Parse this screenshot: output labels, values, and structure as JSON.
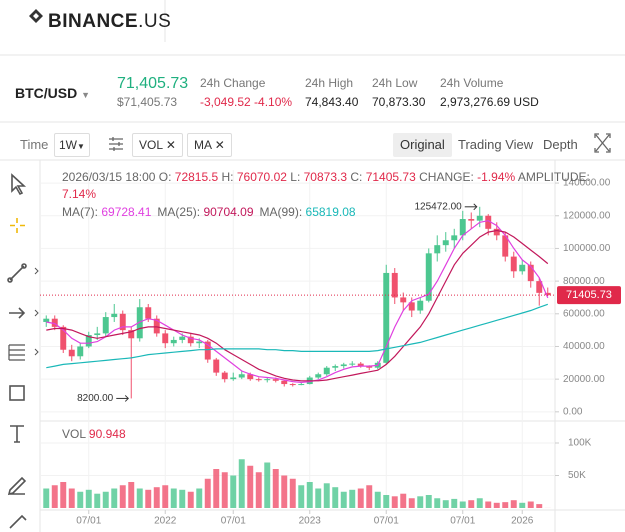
{
  "header": {
    "logo": "BINANCE",
    "logo_suffix": ".US"
  },
  "ticker": {
    "pair": "BTC/USD",
    "price": "71,405.73",
    "price_usd": "$71,405.73",
    "stats": [
      {
        "label": "24h Change",
        "value": "-3,049.52 -4.10%"
      },
      {
        "label": "24h High",
        "value": "74,843.40"
      },
      {
        "label": "24h Low",
        "value": "70,873.30"
      },
      {
        "label": "24h Volume",
        "value": "2,973,276.69 USD"
      }
    ]
  },
  "toolbar": {
    "time_label": "Time",
    "interval": "1W",
    "indicators": [
      "VOL",
      "MA"
    ],
    "views": [
      "Original",
      "Trading View",
      "Depth"
    ]
  },
  "chart": {
    "type": "candlestick",
    "date": "2026/03/15 18:00",
    "ohlc_labels": [
      "O:",
      "H:",
      "L:",
      "C:"
    ],
    "change_label": "CHANGE:",
    "change": "-1.94%",
    "amplitude_label": "AMPLITUDE:",
    "amplitude": "7.14%",
    "up_color": "#4cc790",
    "down_color": "#f0516d",
    "price_line_color": "#e0294a",
    "categories": [
      null,
      null,
      null,
      null,
      null,
      "07/01",
      null,
      null,
      null,
      null,
      null,
      null,
      null,
      null,
      "2022",
      null,
      null,
      null,
      null,
      null,
      null,
      null,
      "07/01",
      null,
      null,
      null,
      null,
      null,
      null,
      null,
      null,
      "2023",
      null,
      null,
      null,
      null,
      null,
      null,
      null,
      null,
      "07/01",
      null,
      null,
      null,
      null,
      null,
      null,
      null,
      null,
      "07/01",
      null,
      null,
      null,
      null,
      null,
      null,
      "2026",
      null,
      null,
      null
    ],
    "candles": [
      [
        55000,
        59000,
        52000,
        57000
      ],
      [
        57000,
        59000,
        50000,
        52000
      ],
      [
        52000,
        53000,
        36000,
        38000
      ],
      [
        38000,
        41000,
        31000,
        34000
      ],
      [
        34000,
        42000,
        32000,
        40000
      ],
      [
        40000,
        49000,
        39000,
        47000
      ],
      [
        47000,
        52000,
        44000,
        48000
      ],
      [
        48000,
        61000,
        46000,
        58000
      ],
      [
        58000,
        66000,
        55000,
        60000
      ],
      [
        60000,
        62000,
        47000,
        50000
      ],
      [
        50000,
        52000,
        8200,
        45000
      ],
      [
        45000,
        69000,
        43000,
        64000
      ],
      [
        64000,
        66000,
        55000,
        57000
      ],
      [
        57000,
        59000,
        46000,
        48000
      ],
      [
        48000,
        50000,
        39000,
        42000
      ],
      [
        42000,
        46000,
        40000,
        44000
      ],
      [
        44000,
        48000,
        42000,
        46000
      ],
      [
        46000,
        48000,
        40000,
        42000
      ],
      [
        42000,
        45000,
        39000,
        43000
      ],
      [
        43000,
        44000,
        30000,
        32000
      ],
      [
        32000,
        33000,
        22000,
        24000
      ],
      [
        24000,
        25000,
        18000,
        20000
      ],
      [
        20000,
        24000,
        19000,
        21000
      ],
      [
        21000,
        25000,
        20000,
        23000
      ],
      [
        23000,
        24000,
        19000,
        20000
      ],
      [
        20000,
        21000,
        18500,
        19500
      ],
      [
        19500,
        21000,
        18000,
        20000
      ],
      [
        20000,
        21000,
        18000,
        19000
      ],
      [
        19000,
        19500,
        15500,
        17000
      ],
      [
        17000,
        17500,
        15500,
        16800
      ],
      [
        16800,
        18000,
        16300,
        17000
      ],
      [
        17000,
        22000,
        16800,
        21000
      ],
      [
        21000,
        24000,
        20000,
        23000
      ],
      [
        23000,
        28000,
        22000,
        27000
      ],
      [
        27000,
        29000,
        25000,
        28000
      ],
      [
        28000,
        30000,
        26500,
        29000
      ],
      [
        29000,
        31000,
        28000,
        29500
      ],
      [
        29500,
        30500,
        27000,
        28000
      ],
      [
        28000,
        28500,
        25500,
        27000
      ],
      [
        27000,
        31000,
        26000,
        30000
      ],
      [
        30000,
        90000,
        29000,
        85000
      ],
      [
        85000,
        88000,
        66000,
        70000
      ],
      [
        70000,
        73000,
        62000,
        67000
      ],
      [
        67000,
        70000,
        58000,
        62000
      ],
      [
        62000,
        70000,
        60000,
        68000
      ],
      [
        68000,
        100000,
        67000,
        97000
      ],
      [
        97000,
        108000,
        92000,
        102000
      ],
      [
        102000,
        110000,
        98000,
        105000
      ],
      [
        105000,
        112000,
        100000,
        108000
      ],
      [
        108000,
        123000,
        105000,
        118000
      ],
      [
        118000,
        122000,
        112000,
        117000
      ],
      [
        117000,
        125472,
        113000,
        120000
      ],
      [
        120000,
        121000,
        108000,
        112000
      ],
      [
        112000,
        116000,
        105000,
        108000
      ],
      [
        108000,
        110000,
        92000,
        95000
      ],
      [
        95000,
        98000,
        82000,
        86000
      ],
      [
        86000,
        93000,
        84000,
        90000
      ],
      [
        90000,
        92000,
        76000,
        80000
      ],
      [
        80000,
        82000,
        65000,
        72815.5
      ],
      [
        72815.5,
        76070.02,
        70873.3,
        71405.73
      ]
    ],
    "ma": [
      {
        "name": "MA(7):",
        "color": "#e040e0",
        "values": [
          55000,
          54000,
          50000,
          45000,
          42000,
          42000,
          43000,
          46000,
          50000,
          52000,
          52000,
          55000,
          57000,
          56000,
          53000,
          50000,
          47000,
          45000,
          44000,
          41000,
          37000,
          33000,
          29000,
          25000,
          23000,
          21500,
          21000,
          20500,
          19500,
          18500,
          18000,
          18500,
          19500,
          21500,
          24000,
          26000,
          27500,
          28000,
          28000,
          28500,
          40000,
          52000,
          62000,
          68000,
          70000,
          72000,
          80000,
          90000,
          100000,
          108000,
          112000,
          116000,
          117000,
          114000,
          108000,
          100000,
          93000,
          89000,
          82000,
          69728.41
        ]
      },
      {
        "name": "MA(25):",
        "color": "#c2185b",
        "values": [
          50000,
          51000,
          51000,
          50000,
          48000,
          46000,
          45000,
          46000,
          47000,
          48000,
          49000,
          51000,
          52000,
          52000,
          51000,
          50000,
          49000,
          48000,
          47000,
          45000,
          42000,
          38000,
          35000,
          32000,
          29000,
          26000,
          24000,
          22000,
          20500,
          19500,
          19000,
          19000,
          19000,
          19500,
          20500,
          21500,
          22500,
          23500,
          24500,
          25500,
          29000,
          34000,
          40000,
          46000,
          52000,
          60000,
          70000,
          80000,
          90000,
          97000,
          102000,
          107000,
          110000,
          111000,
          110000,
          107000,
          103000,
          99000,
          95000,
          90704.09
        ]
      },
      {
        "name": "MA(99):",
        "color": "#1ab8b8",
        "values": [
          27000,
          28000,
          29000,
          29500,
          30000,
          30500,
          31000,
          31500,
          32000,
          32500,
          33000,
          34000,
          35000,
          35500,
          36000,
          36500,
          37000,
          37500,
          38000,
          38000,
          38500,
          38500,
          38500,
          38500,
          38500,
          38500,
          38000,
          38000,
          37500,
          37500,
          37000,
          37000,
          37000,
          37000,
          37000,
          37000,
          37000,
          37000,
          37000,
          37500,
          38500,
          39500,
          40500,
          41500,
          42500,
          44000,
          45500,
          47000,
          48500,
          50000,
          51500,
          53000,
          54500,
          56000,
          57500,
          59000,
          60500,
          62000,
          64000,
          65819.08
        ]
      }
    ],
    "ylim": [
      -5000,
      148000
    ],
    "yticks": [
      {
        "value": 0,
        "label": "0.00"
      },
      {
        "value": 20000,
        "label": "20000.00"
      },
      {
        "value": 40000,
        "label": "40000.00"
      },
      {
        "value": 60000,
        "label": "60000.00"
      },
      {
        "value": 80000,
        "label": "80000.00"
      },
      {
        "value": 100000,
        "label": "100000.00"
      },
      {
        "value": 120000,
        "label": "120000.00"
      },
      {
        "value": 140000,
        "label": "140000.00"
      }
    ],
    "grid": true,
    "annotations": [
      "125472.00",
      "8200.00"
    ],
    "volume": {
      "label": "VOL",
      "ylim": [
        0,
        120000
      ],
      "yticks": [
        {
          "value": 50000,
          "label": "50K"
        },
        {
          "value": 100000,
          "label": "100K"
        }
      ],
      "values": [
        30000,
        35000,
        40000,
        30000,
        25000,
        28000,
        22000,
        25000,
        30000,
        35000,
        40000,
        30000,
        28000,
        32000,
        35000,
        30000,
        28000,
        25000,
        30000,
        45000,
        60000,
        55000,
        50000,
        75000,
        65000,
        55000,
        70000,
        60000,
        50000,
        45000,
        35000,
        40000,
        30000,
        38000,
        32000,
        25000,
        28000,
        30000,
        35000,
        25000,
        20000,
        18000,
        22000,
        15000,
        18000,
        20000,
        15000,
        12000,
        14000,
        10000,
        12000,
        15000,
        10000,
        8000,
        9000,
        12000,
        8000,
        10000,
        6000,
        90.948
      ]
    }
  }
}
